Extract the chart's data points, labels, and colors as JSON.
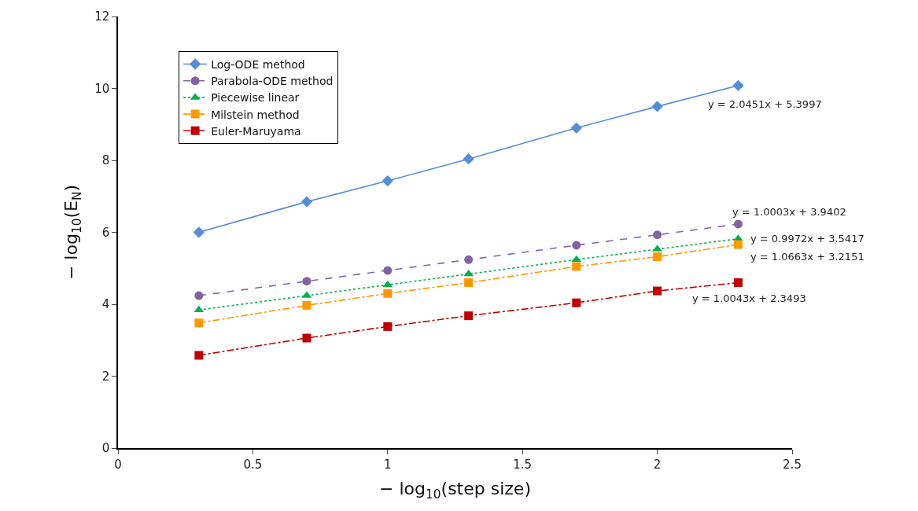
{
  "chart_data": {
    "type": "line",
    "xlabel": "− log$_{10}$(step size)",
    "ylabel": "− log$_{10}$(E$_{N}$)",
    "x": [
      0.3,
      0.7,
      1.0,
      1.3,
      1.7,
      2.0,
      2.3
    ],
    "xlim": [
      0,
      2.5
    ],
    "xticks": [
      0,
      0.5,
      1,
      1.5,
      2,
      2.5
    ],
    "ylim": [
      0,
      12
    ],
    "yticks": [
      0,
      2,
      4,
      6,
      8,
      10,
      12
    ],
    "legend": "top left",
    "series": [
      {
        "name": "Log-ODE method",
        "color": "#558ed5",
        "marker": "diamond",
        "line_style": "solid",
        "values": [
          6.0,
          6.85,
          7.43,
          8.04,
          8.9,
          9.5,
          10.08
        ]
      },
      {
        "name": "Parabola-ODE method",
        "color": "#8064a2",
        "marker": "circle",
        "line_style": "dashed",
        "values": [
          4.24,
          4.64,
          4.94,
          5.24,
          5.64,
          5.93,
          6.23
        ]
      },
      {
        "name": "Piecewise linear",
        "color": "#00b050",
        "marker": "triangle",
        "line_style": "dotted",
        "values": [
          3.84,
          4.24,
          4.54,
          4.84,
          5.24,
          5.53,
          5.82
        ]
      },
      {
        "name": "Milstein method",
        "color": "#ff9900",
        "marker": "square",
        "line_style": "dashdot",
        "values": [
          3.48,
          3.97,
          4.3,
          4.6,
          5.05,
          5.32,
          5.66
        ]
      },
      {
        "name": "Euler-Maruyama",
        "color": "#c00000",
        "marker": "square",
        "line_style": "dashdot",
        "values": [
          2.58,
          3.06,
          3.38,
          3.68,
          4.04,
          4.37,
          4.6
        ]
      }
    ],
    "annotations": [
      "y = 2.0451x + 5.3997",
      "y = 1.0003x + 3.9402",
      "y = 0.9972x + 3.5417",
      "y = 1.0663x + 3.2151",
      "y = 1.0043x + 2.3493"
    ]
  }
}
